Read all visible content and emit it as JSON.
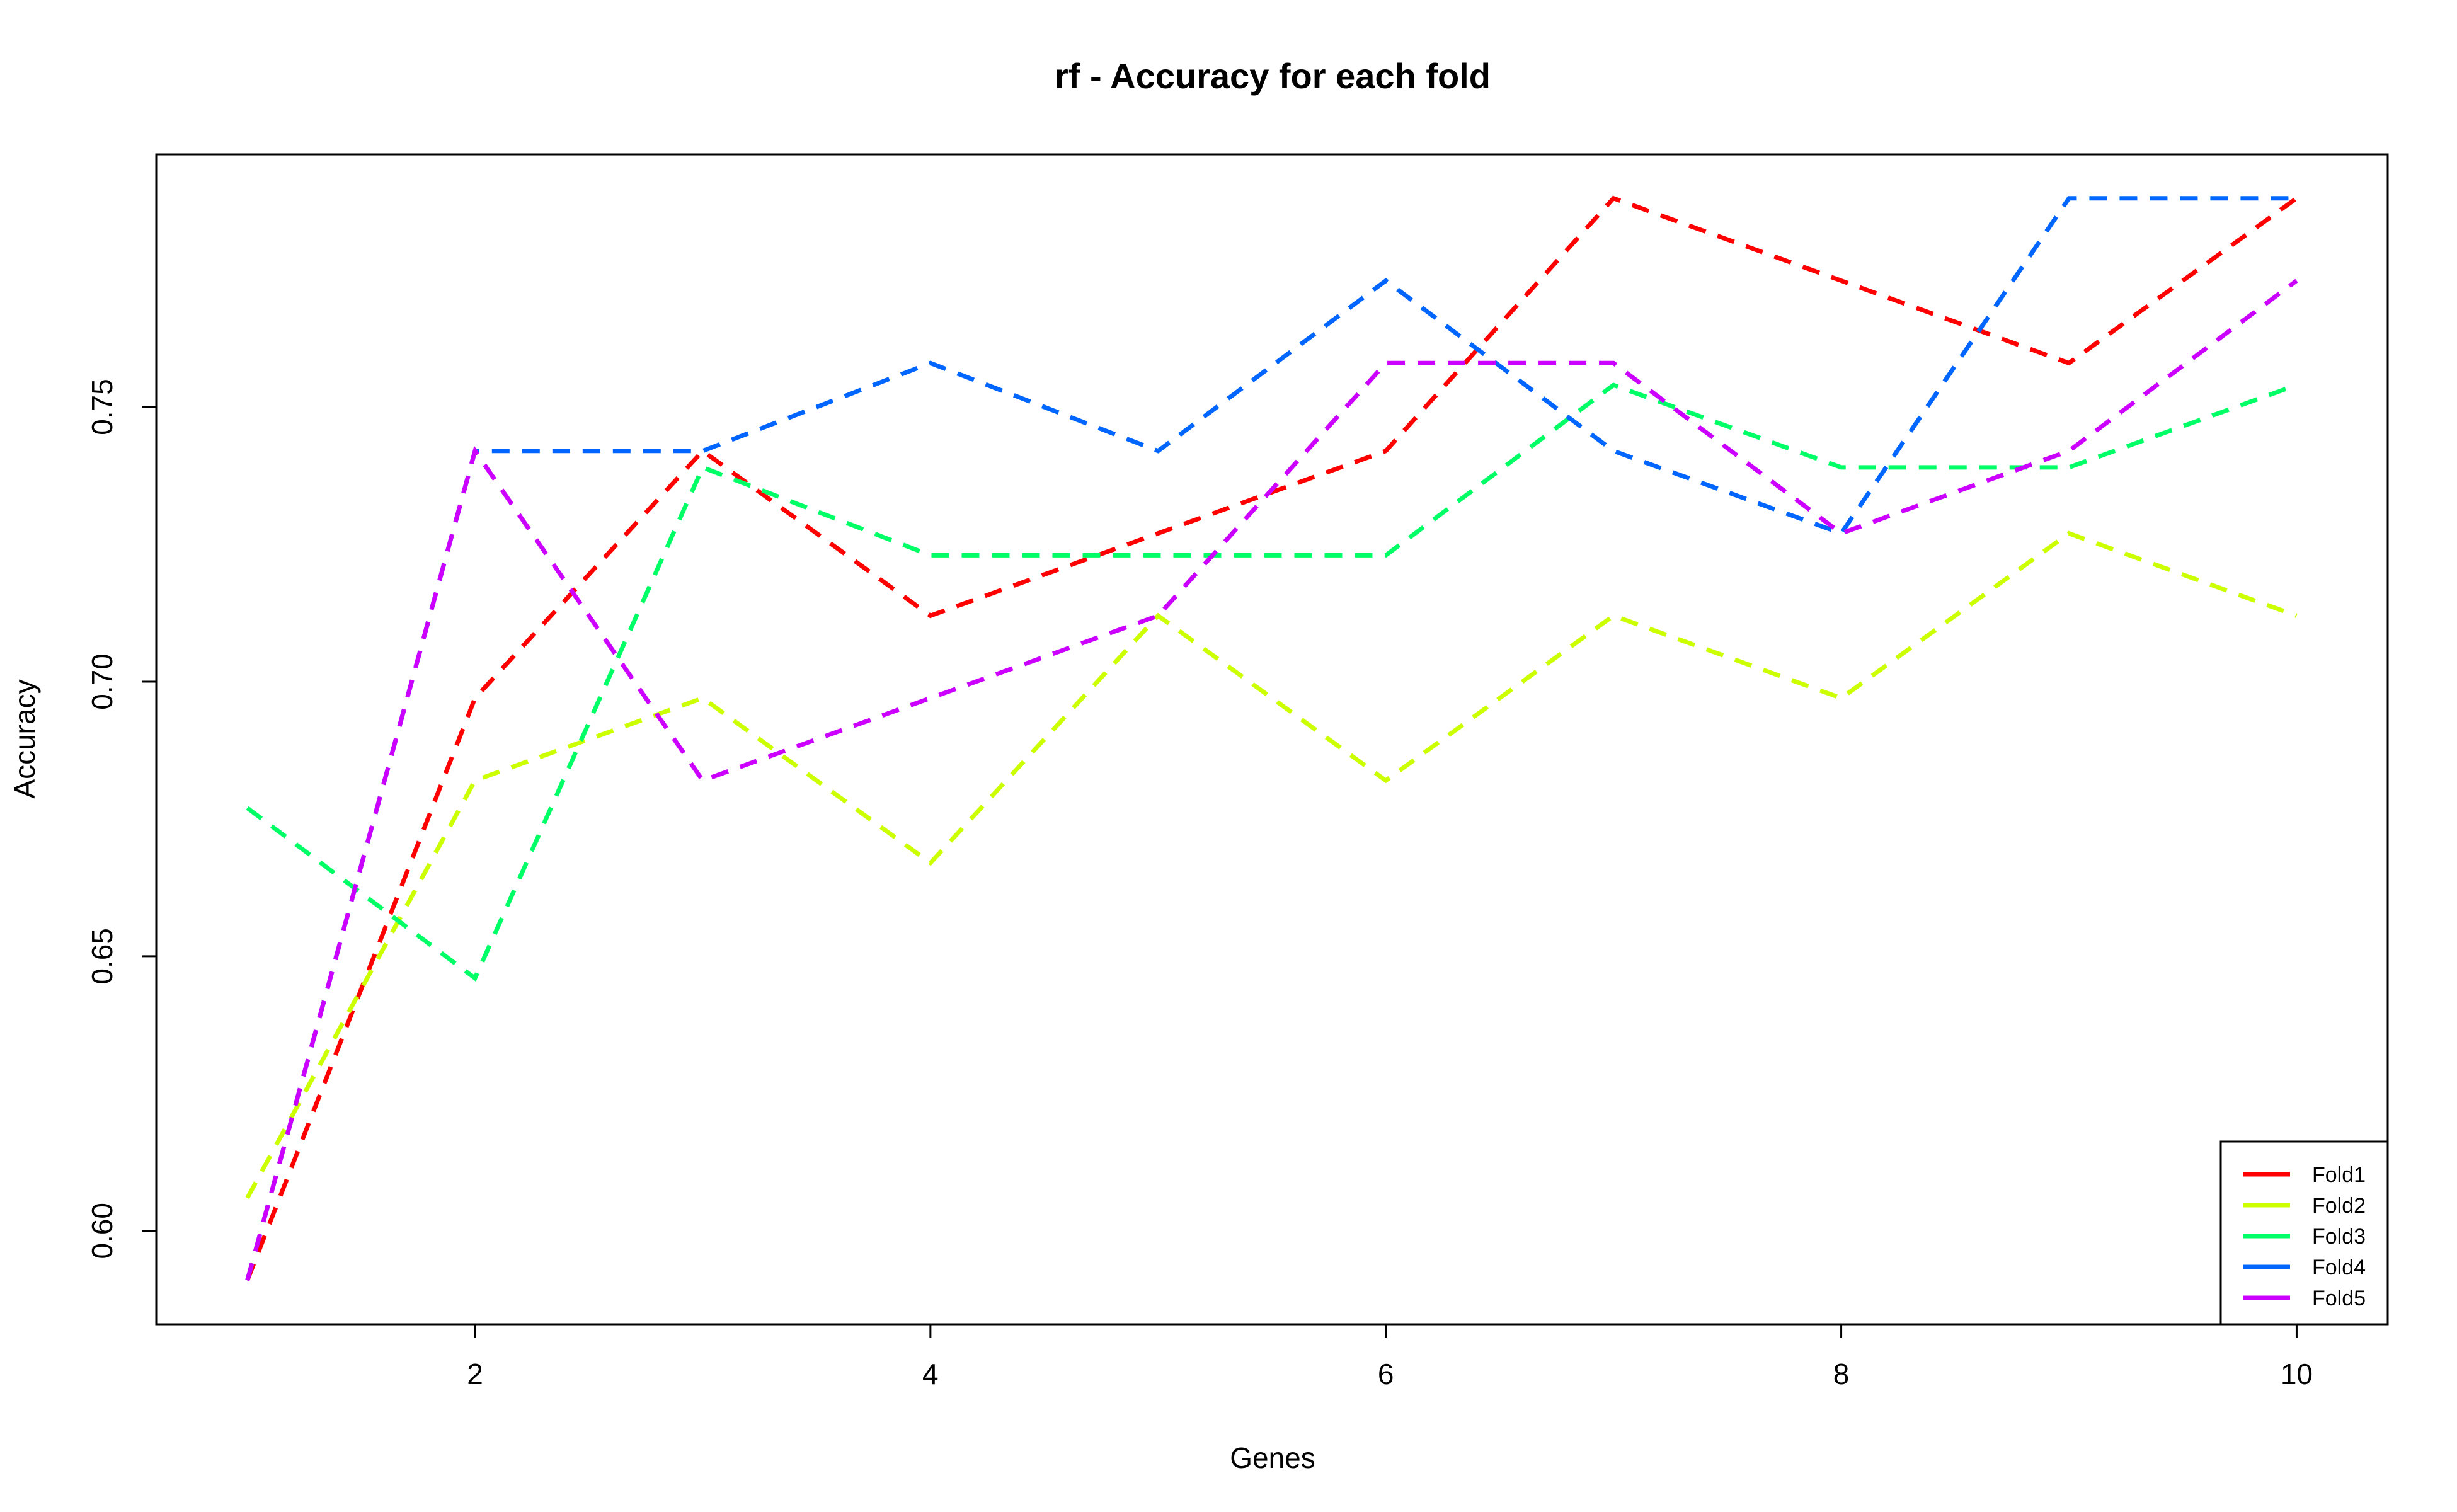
{
  "chart_data": {
    "type": "line",
    "title": "rf - Accuracy for each fold",
    "xlabel": "Genes",
    "ylabel": "Accuracy",
    "x": [
      1,
      2,
      3,
      4,
      5,
      6,
      7,
      8,
      9,
      10
    ],
    "xlim": [
      0.6,
      10.4
    ],
    "ylim": [
      0.583,
      0.796
    ],
    "xticks": [
      2,
      4,
      6,
      8,
      10
    ],
    "yticks": [
      0.6,
      0.65,
      0.7,
      0.75
    ],
    "ytick_labels": [
      "0.60",
      "0.65",
      "0.70",
      "0.75"
    ],
    "grid": false,
    "legend_position": "bottom-right",
    "line_style": "dashed",
    "series": [
      {
        "name": "Fold1",
        "color": "#FF0000",
        "values": [
          0.591,
          0.697,
          0.742,
          0.712,
          0.727,
          0.742,
          0.788,
          0.773,
          0.758,
          0.788
        ]
      },
      {
        "name": "Fold2",
        "color": "#CCFF00",
        "values": [
          0.606,
          0.682,
          0.697,
          0.667,
          0.712,
          0.682,
          0.712,
          0.697,
          0.727,
          0.712
        ]
      },
      {
        "name": "Fold3",
        "color": "#00FF66",
        "values": [
          0.677,
          0.646,
          0.739,
          0.723,
          0.723,
          0.723,
          0.754,
          0.739,
          0.739,
          0.754
        ]
      },
      {
        "name": "Fold4",
        "color": "#0066FF",
        "values": [
          0.591,
          0.742,
          0.742,
          0.758,
          0.742,
          0.773,
          0.742,
          0.727,
          0.788,
          0.788
        ]
      },
      {
        "name": "Fold5",
        "color": "#CC00FF",
        "values": [
          0.591,
          0.742,
          0.682,
          0.697,
          0.712,
          0.758,
          0.758,
          0.727,
          0.742,
          0.773
        ]
      }
    ]
  }
}
